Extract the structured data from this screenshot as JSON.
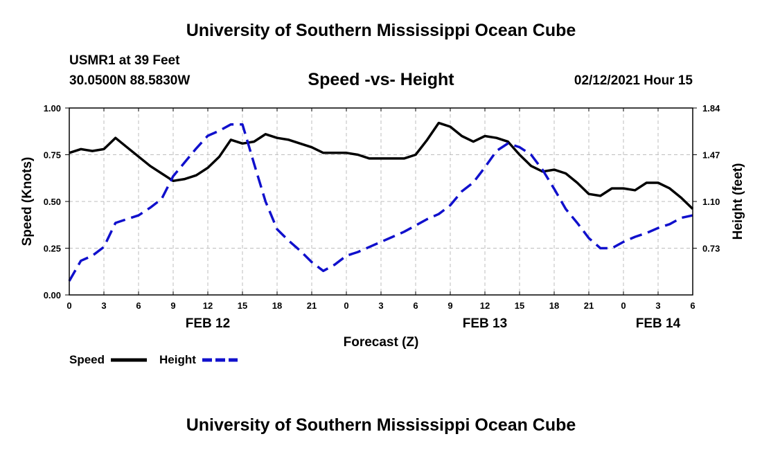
{
  "header": {
    "title": "University of Southern Mississippi Ocean Cube",
    "station": "USMR1 at 39 Feet",
    "coords": "30.0500N 88.5830W",
    "subtitle": "Speed -vs- Height",
    "datetime": "02/12/2021 Hour 15"
  },
  "footer": {
    "title": "University of Southern Mississippi Ocean Cube"
  },
  "chart_data": {
    "type": "line",
    "title": "Speed -vs- Height",
    "xlabel": "Forecast (Z)",
    "ylabel": "Speed (Knots)",
    "y2label": "Height (feet)",
    "xlim": [
      0,
      54
    ],
    "ylim": [
      0,
      1.0
    ],
    "y2lim": [
      0.36,
      1.84
    ],
    "grid": true,
    "x_ticks": [
      {
        "x": 0,
        "label": "0"
      },
      {
        "x": 3,
        "label": "3"
      },
      {
        "x": 6,
        "label": "6"
      },
      {
        "x": 9,
        "label": "9"
      },
      {
        "x": 12,
        "label": "12"
      },
      {
        "x": 15,
        "label": "15"
      },
      {
        "x": 18,
        "label": "18"
      },
      {
        "x": 21,
        "label": "21"
      },
      {
        "x": 24,
        "label": "0"
      },
      {
        "x": 27,
        "label": "3"
      },
      {
        "x": 30,
        "label": "6"
      },
      {
        "x": 33,
        "label": "9"
      },
      {
        "x": 36,
        "label": "12"
      },
      {
        "x": 39,
        "label": "15"
      },
      {
        "x": 42,
        "label": "18"
      },
      {
        "x": 45,
        "label": "21"
      },
      {
        "x": 48,
        "label": "0"
      },
      {
        "x": 51,
        "label": "3"
      },
      {
        "x": 54,
        "label": "6"
      }
    ],
    "date_labels": [
      {
        "x": 12,
        "label": "FEB 12"
      },
      {
        "x": 36,
        "label": "FEB 13"
      },
      {
        "x": 51,
        "label": "FEB 14"
      }
    ],
    "y_ticks": [
      {
        "v": 0.0,
        "label": "0.00"
      },
      {
        "v": 0.25,
        "label": "0.25"
      },
      {
        "v": 0.5,
        "label": "0.50"
      },
      {
        "v": 0.75,
        "label": "0.75"
      },
      {
        "v": 1.0,
        "label": "1.00"
      }
    ],
    "y2_ticks": [
      {
        "v": 0.73,
        "label": "0.73"
      },
      {
        "v": 1.1,
        "label": "1.10"
      },
      {
        "v": 1.47,
        "label": "1.47"
      },
      {
        "v": 1.84,
        "label": "1.84"
      }
    ],
    "legend": [
      {
        "name": "Speed",
        "color": "#000000",
        "dash": "solid"
      },
      {
        "name": "Height",
        "color": "#1010cc",
        "dash": "dashed"
      }
    ],
    "series": [
      {
        "name": "Speed",
        "axis": "left",
        "color": "#000000",
        "x": [
          0,
          1,
          2,
          3,
          4,
          5,
          6,
          7,
          8,
          9,
          10,
          11,
          12,
          13,
          14,
          15,
          16,
          17,
          18,
          19,
          20,
          21,
          22,
          23,
          24,
          25,
          26,
          27,
          28,
          29,
          30,
          31,
          32,
          33,
          34,
          35,
          36,
          37,
          38,
          39,
          40,
          41,
          42,
          43,
          44,
          45,
          46,
          47,
          48,
          49,
          50,
          51,
          52,
          53,
          54
        ],
        "values": [
          0.76,
          0.78,
          0.77,
          0.78,
          0.84,
          0.79,
          0.74,
          0.69,
          0.65,
          0.61,
          0.62,
          0.64,
          0.68,
          0.74,
          0.83,
          0.81,
          0.82,
          0.86,
          0.84,
          0.83,
          0.81,
          0.79,
          0.76,
          0.76,
          0.76,
          0.75,
          0.73,
          0.73,
          0.73,
          0.73,
          0.75,
          0.83,
          0.92,
          0.9,
          0.85,
          0.82,
          0.85,
          0.84,
          0.82,
          0.75,
          0.69,
          0.66,
          0.67,
          0.65,
          0.6,
          0.54,
          0.53,
          0.57,
          0.57,
          0.56,
          0.6,
          0.6,
          0.57,
          0.52,
          0.46
        ]
      },
      {
        "name": "Height",
        "axis": "right",
        "color": "#1010cc",
        "x": [
          0,
          1,
          2,
          3,
          4,
          5,
          6,
          7,
          8,
          9,
          10,
          11,
          12,
          13,
          14,
          15,
          16,
          17,
          18,
          19,
          20,
          21,
          22,
          23,
          24,
          25,
          26,
          27,
          28,
          29,
          30,
          31,
          32,
          33,
          34,
          35,
          36,
          37,
          38,
          39,
          40,
          41,
          42,
          43,
          44,
          45,
          46,
          47,
          48,
          49,
          50,
          51,
          52,
          53,
          54
        ],
        "values": [
          0.47,
          0.63,
          0.67,
          0.74,
          0.93,
          0.96,
          0.99,
          1.05,
          1.12,
          1.3,
          1.41,
          1.52,
          1.62,
          1.66,
          1.71,
          1.71,
          1.4,
          1.1,
          0.88,
          0.79,
          0.71,
          0.62,
          0.55,
          0.6,
          0.67,
          0.7,
          0.74,
          0.78,
          0.82,
          0.86,
          0.91,
          0.96,
          1.0,
          1.07,
          1.18,
          1.25,
          1.37,
          1.5,
          1.56,
          1.53,
          1.47,
          1.35,
          1.2,
          1.04,
          0.93,
          0.81,
          0.73,
          0.73,
          0.78,
          0.82,
          0.85,
          0.89,
          0.92,
          0.97,
          0.99
        ]
      }
    ]
  }
}
